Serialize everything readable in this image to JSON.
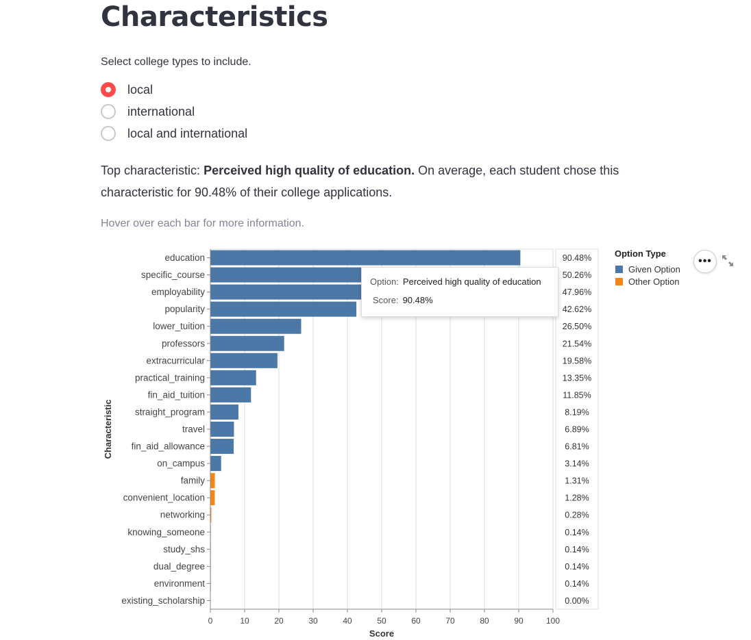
{
  "title": "Characteristics",
  "radio": {
    "label": "Select college types to include.",
    "options": [
      {
        "label": "local",
        "selected": true
      },
      {
        "label": "international",
        "selected": false
      },
      {
        "label": "local and international",
        "selected": false
      }
    ]
  },
  "summary": {
    "prefix": "Top characteristic: ",
    "top": "Perceived high quality of education.",
    "suffix": " On average, each student chose this characteristic for 90.48% of their college applications."
  },
  "hint": "Hover over each bar for more information.",
  "tooltip": {
    "option_key": "Option:",
    "option_value": "Perceived high quality of education",
    "score_key": "Score:",
    "score_value": "90.48%"
  },
  "legend": {
    "title": "Option Type",
    "items": [
      {
        "label": "Given Option",
        "color": "#4c78a8"
      },
      {
        "label": "Other Option",
        "color": "#f58518"
      }
    ]
  },
  "controls": {
    "more": "•••",
    "more_icon": "ellipsis-icon",
    "expand_icon": "expand-icon"
  },
  "chart_data": {
    "type": "bar",
    "orientation": "horizontal",
    "xlabel": "Score",
    "ylabel": "Characteristic",
    "xlim": [
      0,
      100
    ],
    "xticks": [
      0,
      10,
      20,
      30,
      40,
      50,
      60,
      70,
      80,
      90,
      100
    ],
    "grid": true,
    "legend_placement": "right",
    "categories": [
      "education",
      "specific_course",
      "employability",
      "popularity",
      "lower_tuition",
      "professors",
      "extracurricular",
      "practical_training",
      "fin_aid_tuition",
      "straight_program",
      "travel",
      "fin_aid_allowance",
      "on_campus",
      "family",
      "convenient_location",
      "networking",
      "knowing_someone",
      "study_shs",
      "dual_degree",
      "environment",
      "existing_scholarship"
    ],
    "values": [
      90.48,
      50.26,
      47.96,
      42.62,
      26.5,
      21.54,
      19.58,
      13.35,
      11.85,
      8.19,
      6.89,
      6.81,
      3.14,
      1.31,
      1.28,
      0.28,
      0.14,
      0.14,
      0.14,
      0.14,
      0.0
    ],
    "labels": [
      "90.48%",
      "50.26%",
      "47.96%",
      "42.62%",
      "26.50%",
      "21.54%",
      "19.58%",
      "13.35%",
      "11.85%",
      "8.19%",
      "6.89%",
      "6.81%",
      "3.14%",
      "1.31%",
      "1.28%",
      "0.28%",
      "0.14%",
      "0.14%",
      "0.14%",
      "0.14%",
      "0.00%"
    ],
    "option_type": [
      "Given Option",
      "Given Option",
      "Given Option",
      "Given Option",
      "Given Option",
      "Given Option",
      "Given Option",
      "Given Option",
      "Given Option",
      "Given Option",
      "Given Option",
      "Given Option",
      "Given Option",
      "Other Option",
      "Other Option",
      "Other Option",
      "Other Option",
      "Other Option",
      "Other Option",
      "Other Option",
      "Other Option"
    ],
    "colors": {
      "Given Option": "#4c78a8",
      "Other Option": "#f58518"
    }
  }
}
